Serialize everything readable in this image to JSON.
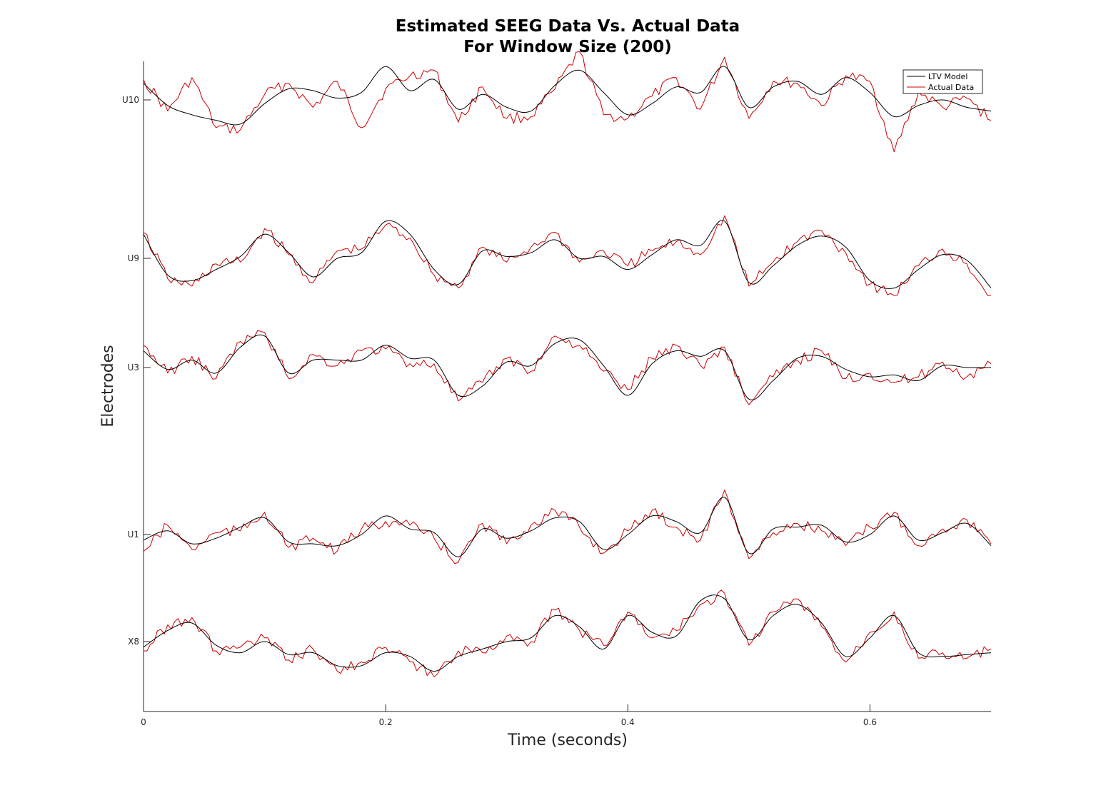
{
  "chart_data": {
    "type": "line",
    "title_lines": [
      "Estimated SEEG Data Vs. Actual Data",
      "For Window Size (200)"
    ],
    "xlabel": "Time (seconds)",
    "ylabel": "Electrodes",
    "xlim": [
      0,
      0.7
    ],
    "x_ticks": [
      {
        "value": 0,
        "label": "0"
      },
      {
        "value": 0.2,
        "label": "0.2"
      },
      {
        "value": 0.4,
        "label": "0.4"
      },
      {
        "value": 0.6,
        "label": "0.6"
      }
    ],
    "channels": [
      "U10",
      "U9",
      "U3",
      "U1",
      "X8"
    ],
    "legend": {
      "position": "top-right",
      "entries": [
        "LTV Model",
        "Actual Data"
      ]
    },
    "series_colors": {
      "LTV Model": "#000000",
      "Actual Data": "#cc0000"
    },
    "series": [
      {
        "name": "LTV Model",
        "channel": "U10",
        "x": [
          0,
          0.02,
          0.04,
          0.06,
          0.08,
          0.1,
          0.12,
          0.14,
          0.16,
          0.18,
          0.2,
          0.22,
          0.24,
          0.26,
          0.28,
          0.3,
          0.32,
          0.34,
          0.36,
          0.38,
          0.4,
          0.42,
          0.44,
          0.46,
          0.48,
          0.5,
          0.52,
          0.54,
          0.56,
          0.58,
          0.6,
          0.62,
          0.64,
          0.66,
          0.68,
          0.7
        ],
        "y": [
          0.9,
          -0.3,
          -0.8,
          -1.1,
          -1.3,
          -0.2,
          0.6,
          0.5,
          0.1,
          0.4,
          1.8,
          0.5,
          1.1,
          -0.5,
          0.3,
          -0.4,
          -0.6,
          0.8,
          1.6,
          0.4,
          -0.8,
          -0.2,
          0.7,
          0.4,
          1.8,
          -0.4,
          0.7,
          1.0,
          0.3,
          1.2,
          0.4,
          -0.9,
          -0.3,
          0.0,
          -0.4,
          -0.6
        ]
      },
      {
        "name": "Actual Data",
        "channel": "U10",
        "x": [
          0,
          0.02,
          0.04,
          0.06,
          0.08,
          0.1,
          0.12,
          0.14,
          0.16,
          0.18,
          0.2,
          0.22,
          0.24,
          0.26,
          0.28,
          0.3,
          0.32,
          0.34,
          0.36,
          0.38,
          0.4,
          0.42,
          0.44,
          0.46,
          0.48,
          0.5,
          0.52,
          0.54,
          0.56,
          0.58,
          0.6,
          0.62,
          0.64,
          0.66,
          0.68,
          0.7
        ],
        "y": [
          1.1,
          -0.6,
          1.2,
          -1.5,
          -1.6,
          0.3,
          0.9,
          -0.4,
          1.0,
          -1.5,
          0.6,
          1.3,
          1.6,
          -1.2,
          0.7,
          -1.0,
          -0.9,
          0.6,
          2.6,
          -0.8,
          -1.0,
          0.2,
          1.2,
          -0.5,
          2.3,
          -1.0,
          1.0,
          0.9,
          -0.3,
          1.3,
          1.0,
          -2.8,
          0.4,
          -0.4,
          0.1,
          -1.1
        ]
      },
      {
        "name": "LTV Model",
        "channel": "U9",
        "x": [
          0,
          0.02,
          0.04,
          0.06,
          0.08,
          0.1,
          0.12,
          0.14,
          0.16,
          0.18,
          0.2,
          0.22,
          0.24,
          0.26,
          0.28,
          0.3,
          0.32,
          0.34,
          0.36,
          0.38,
          0.4,
          0.42,
          0.44,
          0.46,
          0.48,
          0.5,
          0.52,
          0.54,
          0.56,
          0.58,
          0.6,
          0.62,
          0.64,
          0.66,
          0.68,
          0.7
        ],
        "y": [
          1.3,
          -0.9,
          -1.2,
          -0.6,
          0.1,
          1.3,
          0.3,
          -1.0,
          0.0,
          0.3,
          2.0,
          1.3,
          -0.6,
          -1.4,
          0.4,
          0.1,
          0.3,
          1.0,
          0.0,
          0.1,
          -0.6,
          0.2,
          1.0,
          0.7,
          2.0,
          -1.3,
          -0.4,
          0.7,
          1.2,
          0.6,
          -1.2,
          -1.6,
          -0.6,
          0.2,
          -0.1,
          -1.6
        ]
      },
      {
        "name": "Actual Data",
        "channel": "U9",
        "x": [
          0,
          0.02,
          0.04,
          0.06,
          0.08,
          0.1,
          0.12,
          0.14,
          0.16,
          0.18,
          0.2,
          0.22,
          0.24,
          0.26,
          0.28,
          0.3,
          0.32,
          0.34,
          0.36,
          0.38,
          0.4,
          0.42,
          0.44,
          0.46,
          0.48,
          0.5,
          0.52,
          0.54,
          0.56,
          0.58,
          0.6,
          0.62,
          0.64,
          0.66,
          0.68,
          0.7
        ],
        "y": [
          1.4,
          -1.1,
          -1.5,
          -0.3,
          -0.2,
          1.6,
          0.2,
          -1.3,
          0.4,
          0.5,
          1.8,
          1.1,
          -0.9,
          -1.6,
          0.6,
          -0.2,
          0.6,
          1.4,
          -0.2,
          0.4,
          -0.4,
          0.4,
          0.9,
          0.2,
          2.3,
          -1.5,
          -0.2,
          0.9,
          1.5,
          0.3,
          -1.4,
          -2.0,
          -0.4,
          0.5,
          -0.3,
          -2.0
        ]
      },
      {
        "name": "LTV Model",
        "channel": "U3",
        "x": [
          0,
          0.02,
          0.04,
          0.06,
          0.08,
          0.1,
          0.12,
          0.14,
          0.16,
          0.18,
          0.2,
          0.22,
          0.24,
          0.26,
          0.28,
          0.3,
          0.32,
          0.34,
          0.36,
          0.38,
          0.4,
          0.42,
          0.44,
          0.46,
          0.48,
          0.5,
          0.52,
          0.54,
          0.56,
          0.58,
          0.6,
          0.62,
          0.64,
          0.66,
          0.68,
          0.7
        ],
        "y": [
          0.9,
          -0.1,
          0.4,
          -0.3,
          1.1,
          1.7,
          -0.3,
          0.4,
          0.4,
          0.4,
          1.2,
          0.5,
          0.4,
          -1.5,
          -1.0,
          0.3,
          0.1,
          1.3,
          1.5,
          0.1,
          -1.5,
          0.2,
          0.9,
          0.6,
          0.9,
          -1.7,
          -0.7,
          0.5,
          0.6,
          -0.1,
          -0.5,
          -0.4,
          -0.7,
          0.1,
          0.0,
          0.0
        ]
      },
      {
        "name": "Actual Data",
        "channel": "U3",
        "x": [
          0,
          0.02,
          0.04,
          0.06,
          0.08,
          0.1,
          0.12,
          0.14,
          0.16,
          0.18,
          0.2,
          0.22,
          0.24,
          0.26,
          0.28,
          0.3,
          0.32,
          0.34,
          0.36,
          0.38,
          0.4,
          0.42,
          0.44,
          0.46,
          0.48,
          0.5,
          0.52,
          0.54,
          0.56,
          0.58,
          0.6,
          0.62,
          0.64,
          0.66,
          0.68,
          0.7
        ],
        "y": [
          1.2,
          -0.3,
          0.6,
          -0.6,
          1.4,
          1.9,
          -0.6,
          0.7,
          0.1,
          0.9,
          1.0,
          0.2,
          0.2,
          -1.8,
          -0.8,
          0.5,
          -0.2,
          1.7,
          1.2,
          -0.2,
          -1.2,
          0.5,
          1.2,
          0.1,
          1.1,
          -2.0,
          -0.5,
          0.4,
          0.9,
          -0.6,
          -0.3,
          -0.8,
          -0.5,
          0.3,
          -0.5,
          0.2
        ]
      },
      {
        "name": "LTV Model",
        "channel": "U1",
        "x": [
          0,
          0.02,
          0.04,
          0.06,
          0.08,
          0.1,
          0.12,
          0.14,
          0.16,
          0.18,
          0.2,
          0.22,
          0.24,
          0.26,
          0.28,
          0.3,
          0.32,
          0.34,
          0.36,
          0.38,
          0.4,
          0.42,
          0.44,
          0.46,
          0.48,
          0.5,
          0.52,
          0.54,
          0.56,
          0.58,
          0.6,
          0.62,
          0.64,
          0.66,
          0.68,
          0.7
        ],
        "y": [
          -0.3,
          0.2,
          -0.5,
          -0.2,
          0.4,
          0.9,
          -0.4,
          -0.5,
          -0.6,
          0.0,
          1.0,
          0.3,
          0.1,
          -1.2,
          0.3,
          -0.2,
          0.2,
          0.9,
          0.7,
          -0.8,
          0.0,
          1.0,
          0.7,
          0.1,
          2.0,
          -1.0,
          0.3,
          0.4,
          0.5,
          -0.4,
          0.0,
          1.0,
          -0.3,
          0.1,
          0.6,
          -0.6
        ]
      },
      {
        "name": "Actual Data",
        "channel": "U1",
        "x": [
          0,
          0.02,
          0.04,
          0.06,
          0.08,
          0.1,
          0.12,
          0.14,
          0.16,
          0.18,
          0.2,
          0.22,
          0.24,
          0.26,
          0.28,
          0.3,
          0.32,
          0.34,
          0.36,
          0.38,
          0.4,
          0.42,
          0.44,
          0.46,
          0.48,
          0.5,
          0.52,
          0.54,
          0.56,
          0.58,
          0.6,
          0.62,
          0.64,
          0.66,
          0.68,
          0.7
        ],
        "y": [
          -0.9,
          0.5,
          -0.8,
          0.1,
          0.2,
          1.2,
          -0.7,
          -0.2,
          -0.9,
          0.3,
          0.7,
          0.5,
          -0.2,
          -1.5,
          0.6,
          -0.5,
          0.5,
          1.3,
          0.4,
          -1.0,
          0.2,
          1.3,
          0.4,
          -0.3,
          2.4,
          -1.3,
          0.1,
          0.6,
          0.2,
          -0.6,
          0.4,
          1.2,
          -0.6,
          0.3,
          0.8,
          -0.5
        ]
      },
      {
        "name": "LTV Model",
        "channel": "X8",
        "x": [
          0,
          0.02,
          0.04,
          0.06,
          0.08,
          0.1,
          0.12,
          0.14,
          0.16,
          0.18,
          0.2,
          0.22,
          0.24,
          0.26,
          0.28,
          0.3,
          0.32,
          0.34,
          0.36,
          0.38,
          0.4,
          0.42,
          0.44,
          0.46,
          0.48,
          0.5,
          0.52,
          0.54,
          0.56,
          0.58,
          0.6,
          0.62,
          0.64,
          0.66,
          0.68,
          0.7
        ],
        "y": [
          -0.3,
          0.6,
          1.0,
          -0.2,
          -0.6,
          0.0,
          -0.7,
          -0.6,
          -1.3,
          -1.3,
          -0.6,
          -0.8,
          -1.6,
          -0.8,
          -0.4,
          0.0,
          0.2,
          1.4,
          0.8,
          -0.4,
          1.4,
          0.5,
          0.3,
          2.2,
          2.3,
          0.1,
          1.4,
          2.0,
          1.0,
          -0.8,
          0.2,
          1.4,
          -0.6,
          -0.8,
          -0.7,
          -0.6
        ]
      },
      {
        "name": "Actual Data",
        "channel": "X8",
        "x": [
          0,
          0.02,
          0.04,
          0.06,
          0.08,
          0.1,
          0.12,
          0.14,
          0.16,
          0.18,
          0.2,
          0.22,
          0.24,
          0.26,
          0.28,
          0.3,
          0.32,
          0.34,
          0.36,
          0.38,
          0.4,
          0.42,
          0.44,
          0.46,
          0.48,
          0.5,
          0.52,
          0.54,
          0.56,
          0.58,
          0.6,
          0.62,
          0.64,
          0.66,
          0.68,
          0.7
        ],
        "y": [
          -0.5,
          0.9,
          1.3,
          -0.5,
          -0.3,
          0.2,
          -1.0,
          -0.4,
          -1.6,
          -1.1,
          -0.3,
          -1.1,
          -1.9,
          -0.5,
          -0.6,
          0.3,
          0.0,
          1.7,
          0.6,
          -0.2,
          1.6,
          0.2,
          0.6,
          2.0,
          2.6,
          -0.2,
          1.6,
          2.3,
          0.8,
          -1.1,
          0.5,
          1.6,
          -0.9,
          -0.6,
          -0.9,
          -0.4
        ]
      }
    ]
  }
}
